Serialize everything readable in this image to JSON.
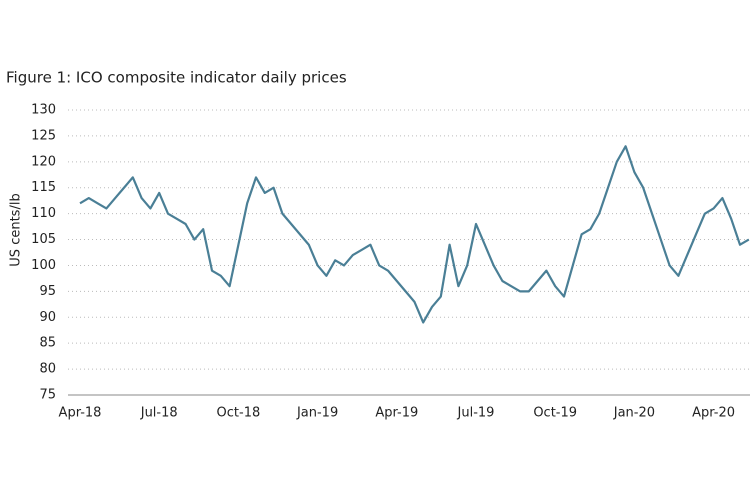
{
  "chart_data": {
    "type": "line",
    "title": "Figure 1: ICO composite indicator daily prices",
    "y_label": "US cents/lb",
    "categories": [
      "Apr-18",
      null,
      null,
      null,
      null,
      null,
      null,
      null,
      null,
      "Jul-18",
      null,
      null,
      null,
      null,
      null,
      null,
      null,
      null,
      "Oct-18",
      null,
      null,
      null,
      null,
      null,
      null,
      null,
      null,
      "Jan-19",
      null,
      null,
      null,
      null,
      null,
      null,
      null,
      null,
      "Apr-19",
      null,
      null,
      null,
      null,
      null,
      null,
      null,
      null,
      "Jul-19",
      null,
      null,
      null,
      null,
      null,
      null,
      null,
      null,
      "Oct-19",
      null,
      null,
      null,
      null,
      null,
      null,
      null,
      null,
      "Jan-20",
      null,
      null,
      null,
      null,
      null,
      null,
      null,
      null,
      "Apr-20",
      null,
      null,
      null,
      null
    ],
    "values": [
      112,
      113,
      112,
      111,
      113,
      115,
      117,
      113,
      111,
      114,
      110,
      109,
      108,
      105,
      107,
      99,
      98,
      96,
      104,
      112,
      117,
      114,
      115,
      110,
      108,
      106,
      104,
      100,
      98,
      101,
      100,
      102,
      103,
      104,
      100,
      99,
      97,
      95,
      93,
      89,
      92,
      94,
      104,
      96,
      100,
      108,
      104,
      100,
      97,
      96,
      95,
      95,
      97,
      99,
      96,
      94,
      100,
      106,
      107,
      110,
      115,
      120,
      123,
      118,
      115,
      110,
      105,
      100,
      98,
      102,
      106,
      110,
      111,
      113,
      109,
      104,
      105
    ],
    "color": "#4a7f96",
    "ylim": [
      75,
      130
    ],
    "yticks": [
      75,
      80,
      85,
      90,
      95,
      100,
      105,
      110,
      115,
      120,
      125,
      130
    ],
    "grid": true
  }
}
